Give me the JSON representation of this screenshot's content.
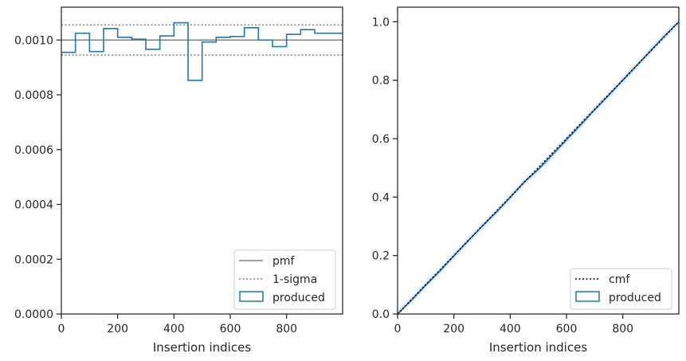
{
  "chart_data": [
    {
      "type": "step",
      "title": "",
      "xlabel": "Insertion indices",
      "ylabel": "",
      "xlim": [
        0,
        999
      ],
      "ylim": [
        0,
        0.00112
      ],
      "xticks": [
        0,
        200,
        400,
        600,
        800
      ],
      "xtick_labels": [
        "0",
        "200",
        "400",
        "600",
        "800"
      ],
      "yticks": [
        0,
        0.0002,
        0.0004,
        0.0006,
        0.0008,
        0.001
      ],
      "ytick_labels": [
        "0.0000",
        "0.0002",
        "0.0004",
        "0.0006",
        "0.0008",
        "0.0010"
      ],
      "grid": false,
      "legend_position": "lower-right",
      "series": [
        {
          "name": "pmf",
          "kind": "line",
          "color": "#808080",
          "y": 0.001
        },
        {
          "name": "1-sigma",
          "kind": "dotted-lines",
          "color": "#808080",
          "y": [
            0.000945,
            0.001055
          ]
        },
        {
          "name": "produced",
          "kind": "step-histogram",
          "color": "#1f77b4",
          "bin_edges": [
            0,
            50,
            100,
            150,
            200,
            250,
            300,
            350,
            400,
            450,
            500,
            550,
            600,
            650,
            700,
            750,
            800,
            850,
            900,
            950,
            999
          ],
          "values": [
            0.000955,
            0.001025,
            0.000958,
            0.001042,
            0.00101,
            0.001003,
            0.000966,
            0.001015,
            0.001063,
            0.000853,
            0.000993,
            0.00101,
            0.001013,
            0.001045,
            0.001,
            0.000976,
            0.001021,
            0.001038,
            0.001025,
            0.001025
          ]
        }
      ]
    },
    {
      "type": "line",
      "title": "",
      "xlabel": "Insertion indices",
      "ylabel": "",
      "xlim": [
        0,
        999
      ],
      "ylim": [
        0,
        1.05
      ],
      "xticks": [
        0,
        200,
        400,
        600,
        800
      ],
      "xtick_labels": [
        "0",
        "200",
        "400",
        "600",
        "800"
      ],
      "yticks": [
        0,
        0.2,
        0.4,
        0.6,
        0.8,
        1.0
      ],
      "ytick_labels": [
        "0.0",
        "0.2",
        "0.4",
        "0.6",
        "0.8",
        "1.0"
      ],
      "grid": false,
      "legend_position": "lower-right",
      "series": [
        {
          "name": "cmf",
          "kind": "dotted-line",
          "color": "#000000",
          "x": [
            0,
            999
          ],
          "y": [
            0,
            1.0
          ]
        },
        {
          "name": "produced",
          "kind": "step-line",
          "color": "#1f77b4",
          "band_color": "#aec7e8",
          "x": [
            0,
            50,
            100,
            150,
            200,
            250,
            300,
            350,
            400,
            450,
            500,
            550,
            600,
            650,
            700,
            750,
            800,
            850,
            900,
            950,
            999
          ],
          "y": [
            0,
            0.048,
            0.099,
            0.147,
            0.199,
            0.25,
            0.3,
            0.348,
            0.399,
            0.452,
            0.495,
            0.545,
            0.596,
            0.647,
            0.699,
            0.749,
            0.8,
            0.851,
            0.902,
            0.953,
            1.0
          ]
        }
      ]
    }
  ]
}
